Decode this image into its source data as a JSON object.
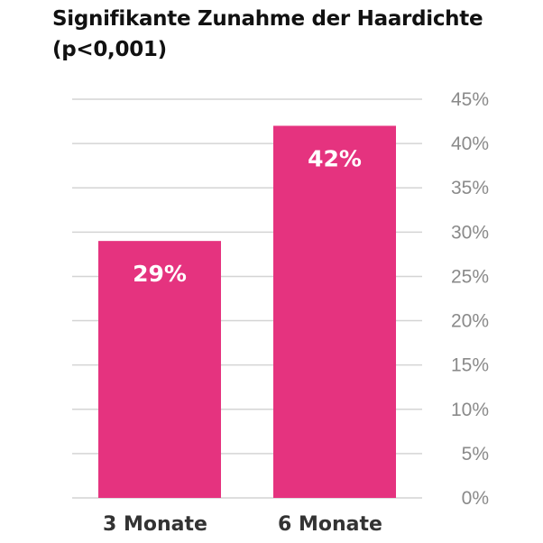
{
  "chart_data": {
    "type": "bar",
    "title_lines": [
      "Signifikante Zunahme der Haardichte",
      "(p<0,001)"
    ],
    "categories": [
      "3 Monate",
      "6 Monate"
    ],
    "values": [
      29,
      42
    ],
    "data_labels": [
      "29%",
      "42%"
    ],
    "ylim": [
      0,
      45
    ],
    "yticks": [
      0,
      5,
      10,
      15,
      20,
      25,
      30,
      35,
      40,
      45
    ],
    "ytick_labels": [
      "0%",
      "5%",
      "10%",
      "15%",
      "20%",
      "25%",
      "30%",
      "35%",
      "40%",
      "45%"
    ],
    "y_axis_side": "right",
    "grid": true,
    "bar_color": "#e5337f"
  }
}
